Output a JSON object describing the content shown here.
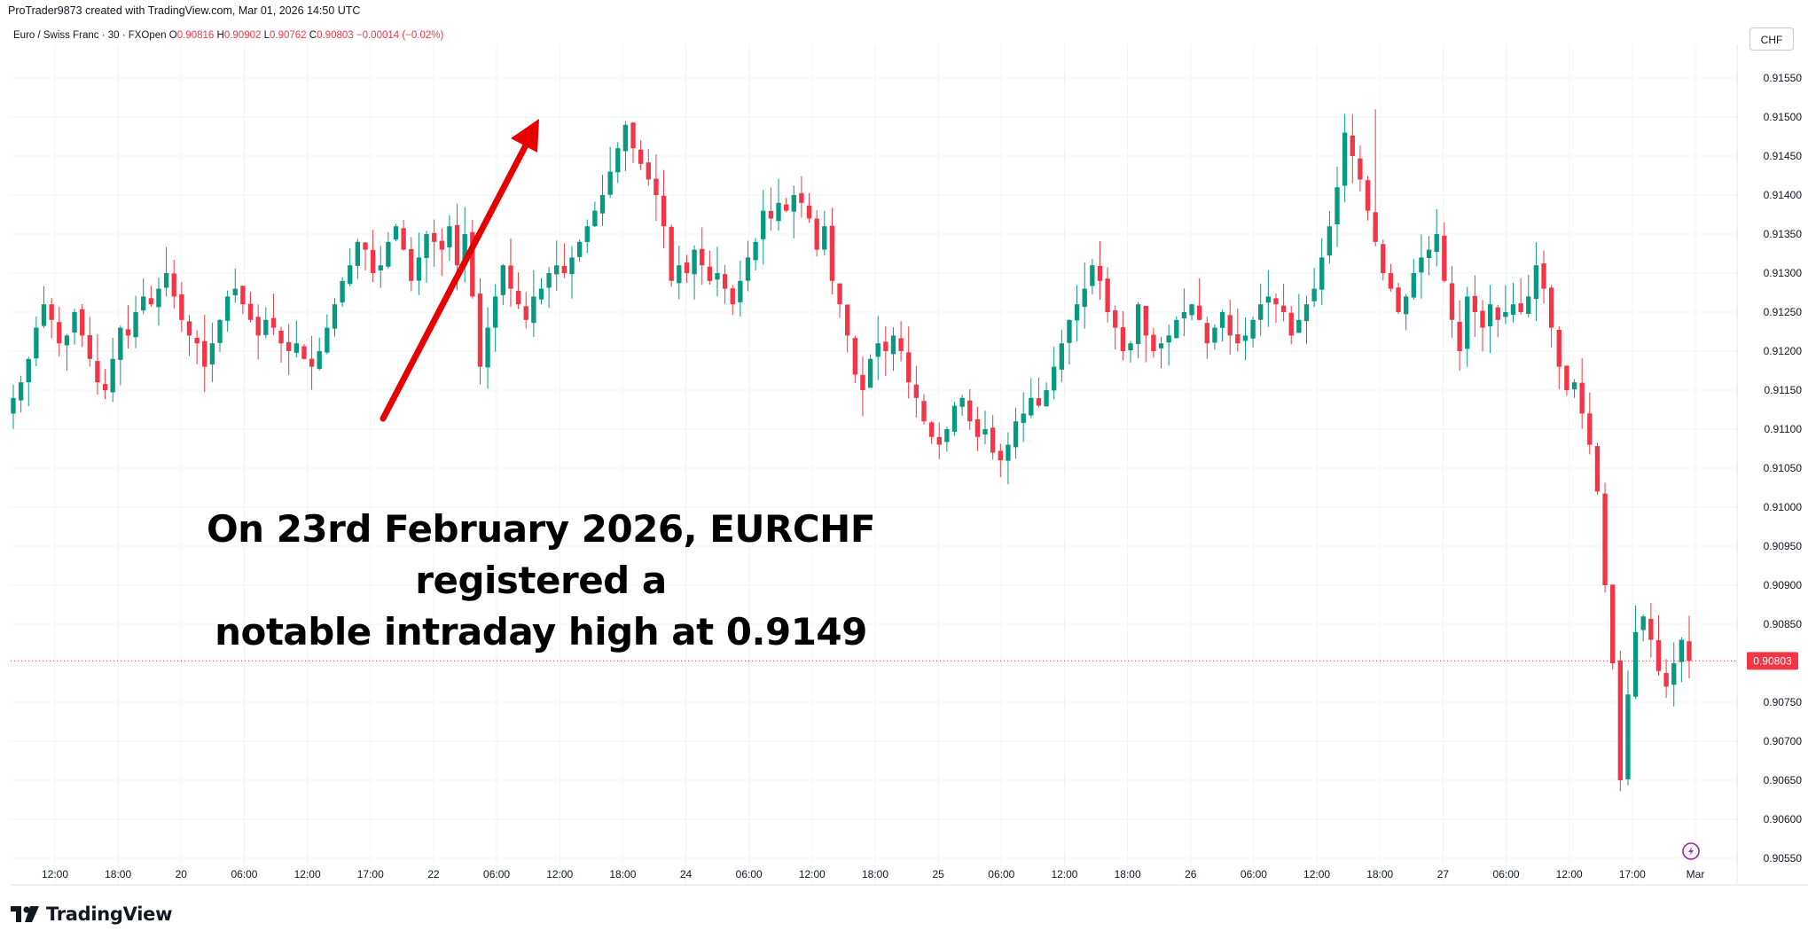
{
  "header": {
    "attribution": "ProTrader9873 created with TradingView.com, Mar 01, 2026 14:50 UTC"
  },
  "legend": {
    "symbol": "Euro / Swiss Franc · 30 · FXOpen",
    "open_label": "O",
    "open_value": "0.90816",
    "high_label": "H",
    "high_value": "0.90902",
    "low_label": "L",
    "low_value": "0.90762",
    "close_label": "C",
    "close_value": "0.90803",
    "change": "−0.00014 (−0.02%)"
  },
  "currency": "CHF",
  "annotation": "On 23rd February 2026, EURCHF registered a\nnotable intraday high at 0.9149",
  "brand": "TradingView",
  "colors": {
    "up": "#089981",
    "down": "#f23645",
    "arrow": "#e60000",
    "price_line": "#f23645"
  },
  "icons": [
    "tradingview-logo-icon",
    "lightning-icon"
  ],
  "chart_data": {
    "type": "candlestick",
    "symbol": "EURCHF",
    "timeframe": "30",
    "ylim": [
      0.9052,
      0.9158
    ],
    "last_price": 0.90803,
    "y_ticks": [
      "0.91550",
      "0.91500",
      "0.91450",
      "0.91400",
      "0.91350",
      "0.91300",
      "0.91250",
      "0.91200",
      "0.91150",
      "0.91100",
      "0.91050",
      "0.91000",
      "0.90950",
      "0.90900",
      "0.90850",
      "0.90750",
      "0.90700",
      "0.90650",
      "0.90600",
      "0.90550"
    ],
    "y_tick_values": [
      0.9155,
      0.915,
      0.9145,
      0.914,
      0.9135,
      0.913,
      0.9125,
      0.912,
      0.9115,
      0.911,
      0.9105,
      0.91,
      0.9095,
      0.909,
      0.9085,
      0.9075,
      0.907,
      0.9065,
      0.906,
      0.9055
    ],
    "x_ticks": [
      "12:00",
      "18:00",
      "20",
      "06:00",
      "12:00",
      "17:00",
      "22",
      "06:00",
      "12:00",
      "18:00",
      "24",
      "06:00",
      "12:00",
      "18:00",
      "25",
      "06:00",
      "12:00",
      "18:00",
      "26",
      "06:00",
      "12:00",
      "18:00",
      "27",
      "06:00",
      "12:00",
      "17:00",
      "Mar"
    ],
    "key_high": {
      "label": "intraday high 23 Feb",
      "value": 0.9149
    },
    "closes": [
      0.9114,
      0.9116,
      0.9119,
      0.9123,
      0.9126,
      0.9124,
      0.9121,
      0.9122,
      0.9125,
      0.9122,
      0.9119,
      0.9116,
      0.9115,
      0.9119,
      0.9123,
      0.9122,
      0.9125,
      0.9127,
      0.9126,
      0.9128,
      0.913,
      0.9127,
      0.9124,
      0.9122,
      0.9121,
      0.9118,
      0.9121,
      0.9124,
      0.9127,
      0.9128,
      0.9126,
      0.9124,
      0.9122,
      0.9124,
      0.9123,
      0.9121,
      0.912,
      0.9121,
      0.9119,
      0.9118,
      0.912,
      0.9123,
      0.9126,
      0.9129,
      0.9131,
      0.9134,
      0.9133,
      0.913,
      0.9131,
      0.9134,
      0.9136,
      0.9133,
      0.9129,
      0.9132,
      0.9135,
      0.9134,
      0.9133,
      0.9136,
      0.9131,
      0.9135,
      0.9127,
      0.9118,
      0.9123,
      0.9127,
      0.9131,
      0.9128,
      0.9126,
      0.9124,
      0.9127,
      0.9128,
      0.913,
      0.9131,
      0.913,
      0.9132,
      0.9134,
      0.9136,
      0.9138,
      0.914,
      0.9143,
      0.9146,
      0.9149,
      0.9146,
      0.9144,
      0.9142,
      0.914,
      0.9136,
      0.9129,
      0.9131,
      0.913,
      0.9133,
      0.9131,
      0.9129,
      0.913,
      0.9128,
      0.9126,
      0.9129,
      0.9132,
      0.9134,
      0.9138,
      0.9137,
      0.9139,
      0.9138,
      0.914,
      0.9139,
      0.9137,
      0.9133,
      0.9136,
      0.9129,
      0.9126,
      0.9122,
      0.9117,
      0.9115,
      0.9119,
      0.9121,
      0.912,
      0.9122,
      0.912,
      0.9116,
      0.9114,
      0.9111,
      0.9109,
      0.9108,
      0.911,
      0.9113,
      0.9114,
      0.9111,
      0.9109,
      0.911,
      0.9107,
      0.9106,
      0.9108,
      0.9111,
      0.9112,
      0.9114,
      0.9113,
      0.9115,
      0.9118,
      0.9121,
      0.9124,
      0.9126,
      0.9128,
      0.9131,
      0.9129,
      0.9125,
      0.9123,
      0.912,
      0.9121,
      0.9126,
      0.9122,
      0.912,
      0.9121,
      0.9122,
      0.9124,
      0.9125,
      0.9126,
      0.9124,
      0.9121,
      0.9123,
      0.9125,
      0.9122,
      0.9121,
      0.9122,
      0.9124,
      0.9126,
      0.9127,
      0.9126,
      0.9125,
      0.9122,
      0.9124,
      0.9126,
      0.9128,
      0.9132,
      0.9136,
      0.9141,
      0.9148,
      0.9145,
      0.9142,
      0.9138,
      0.9134,
      0.913,
      0.9128,
      0.9125,
      0.9127,
      0.913,
      0.9132,
      0.9133,
      0.9135,
      0.9129,
      0.9124,
      0.912,
      0.9127,
      0.9125,
      0.9123,
      0.9126,
      0.9124,
      0.9125,
      0.9126,
      0.9125,
      0.9127,
      0.9131,
      0.9128,
      0.9123,
      0.9118,
      0.9115,
      0.9116,
      0.9112,
      0.9108,
      0.9102,
      0.909,
      0.908,
      0.9065,
      0.9076,
      0.9084,
      0.9086,
      0.9083,
      0.9079,
      0.9077,
      0.908,
      0.9083,
      0.90803
    ]
  }
}
